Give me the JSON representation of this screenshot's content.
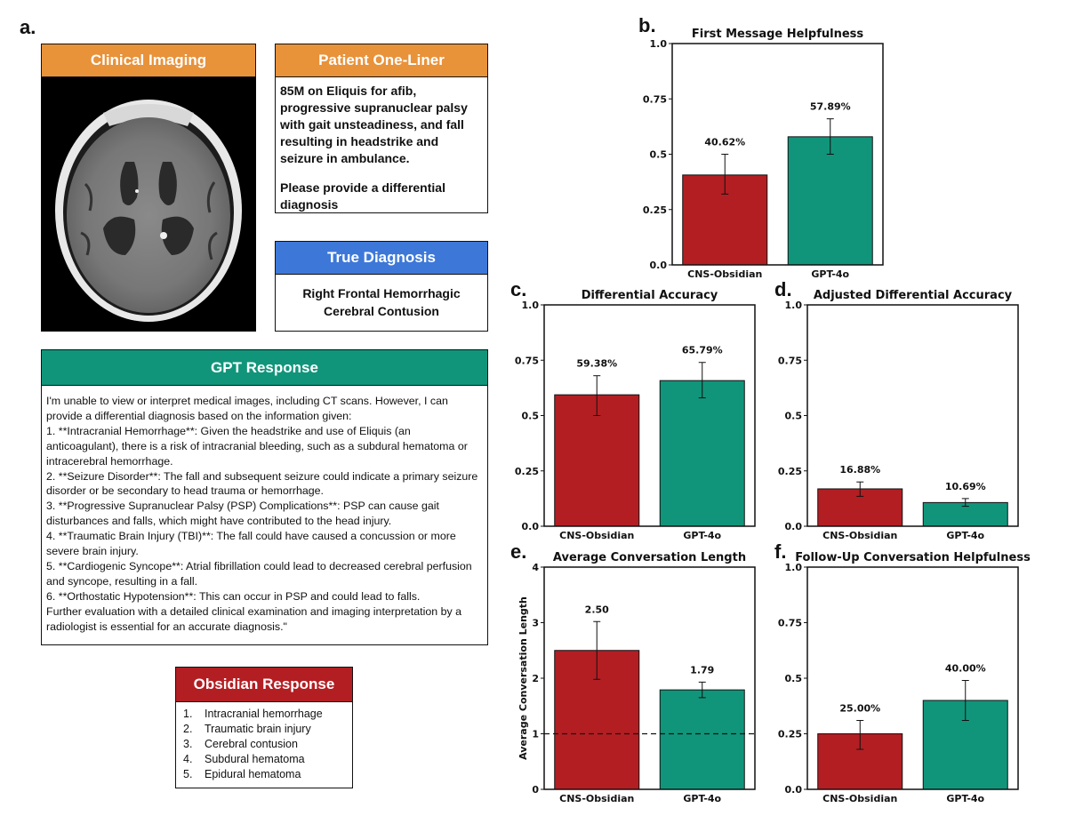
{
  "panels": {
    "a": "a.",
    "b": "b.",
    "c": "c.",
    "d": "d.",
    "e": "e.",
    "f": "f."
  },
  "clinical_imaging": {
    "title": "Clinical Imaging"
  },
  "patient_one_liner": {
    "title": "Patient One-Liner",
    "text": "85M on Eliquis for afib, progressive supranuclear palsy with gait unsteadiness, and fall resulting in headstrike and seizure in ambulance.",
    "request": "Please provide a differential diagnosis"
  },
  "true_diagnosis": {
    "title": "True Diagnosis",
    "text": "Right Frontal Hemorrhagic Cerebral Contusion"
  },
  "gpt_response": {
    "title": "GPT Response",
    "lines": [
      "I'm unable to view or interpret medical images, including CT scans. However, I can provide a differential diagnosis based on the information given:",
      "1. **Intracranial Hemorrhage**: Given the headstrike and use of Eliquis (an anticoagulant), there is a risk of intracranial bleeding, such as a subdural hematoma or intracerebral hemorrhage.",
      "2. **Seizure Disorder**: The fall and subsequent seizure could indicate a primary seizure disorder or be secondary to head trauma or hemorrhage.",
      "3. **Progressive Supranuclear Palsy (PSP) Complications**: PSP can cause gait disturbances and falls, which might have contributed to the head injury.",
      "4. **Traumatic Brain Injury (TBI)**: The fall could have caused a concussion or more severe brain injury.",
      "5. **Cardiogenic Syncope**: Atrial fibrillation could lead to decreased cerebral perfusion and syncope, resulting in a fall.",
      "6. **Orthostatic Hypotension**: This can occur in PSP and could lead to falls.",
      "Further evaluation with a detailed clinical examination and imaging interpretation by a radiologist is essential for an accurate diagnosis.\""
    ]
  },
  "obsidian_response": {
    "title": "Obsidian Response",
    "items": [
      {
        "num": "1.",
        "text": "Intracranial hemorrhage"
      },
      {
        "num": "2.",
        "text": "Traumatic brain injury"
      },
      {
        "num": "3.",
        "text": "Cerebral contusion"
      },
      {
        "num": "4.",
        "text": "Subdural hematoma"
      },
      {
        "num": "5.",
        "text": "Epidural hematoma"
      }
    ]
  },
  "colors": {
    "obsidian": "#b31e23",
    "gpt": "#11957a",
    "orange": "#e8923a",
    "blue": "#3d78d8"
  },
  "chart_data": [
    {
      "id": "b",
      "type": "bar",
      "title": "First Message Helpfulness",
      "categories": [
        "CNS-Obsidian",
        "GPT-4o"
      ],
      "values": [
        0.4062,
        0.5789
      ],
      "errors": [
        [
          0.32,
          0.5
        ],
        [
          0.5,
          0.66
        ]
      ],
      "labels": [
        "40.62%",
        "57.89%"
      ],
      "ylim": [
        0,
        1.0
      ],
      "yticks": [
        0.0,
        0.25,
        0.5,
        0.75,
        1.0
      ],
      "ytick_labels": [
        "0.0",
        "0.25",
        "0.5",
        "0.75",
        "1.0"
      ],
      "ylabel": ""
    },
    {
      "id": "c",
      "type": "bar",
      "title": "Differential Accuracy",
      "categories": [
        "CNS-Obsidian",
        "GPT-4o"
      ],
      "values": [
        0.5938,
        0.6579
      ],
      "errors": [
        [
          0.5,
          0.68
        ],
        [
          0.58,
          0.74
        ]
      ],
      "labels": [
        "59.38%",
        "65.79%"
      ],
      "ylim": [
        0,
        1.0
      ],
      "yticks": [
        0.0,
        0.25,
        0.5,
        0.75,
        1.0
      ],
      "ytick_labels": [
        "0.0",
        "0.25",
        "0.5",
        "0.75",
        "1.0"
      ],
      "ylabel": ""
    },
    {
      "id": "d",
      "type": "bar",
      "title": "Adjusted Differential Accuracy",
      "categories": [
        "CNS-Obsidian",
        "GPT-4o"
      ],
      "values": [
        0.1688,
        0.1069
      ],
      "errors": [
        [
          0.135,
          0.2
        ],
        [
          0.09,
          0.125
        ]
      ],
      "labels": [
        "16.88%",
        "10.69%"
      ],
      "ylim": [
        0,
        1.0
      ],
      "yticks": [
        0.0,
        0.25,
        0.5,
        0.75,
        1.0
      ],
      "ytick_labels": [
        "0.0",
        "0.25",
        "0.5",
        "0.75",
        "1.0"
      ],
      "ylabel": ""
    },
    {
      "id": "e",
      "type": "bar",
      "title": "Average Conversation Length",
      "categories": [
        "CNS-Obsidian",
        "GPT-4o"
      ],
      "values": [
        2.5,
        1.79
      ],
      "errors": [
        [
          1.98,
          3.02
        ],
        [
          1.65,
          1.93
        ]
      ],
      "labels": [
        "2.50",
        "1.79"
      ],
      "ylim": [
        0,
        4
      ],
      "yticks": [
        0,
        1,
        2,
        3,
        4
      ],
      "ytick_labels": [
        "0",
        "1",
        "2",
        "3",
        "4"
      ],
      "ylabel": "Average Conversation Length",
      "reference_line": 1
    },
    {
      "id": "f",
      "type": "bar",
      "title": "Follow-Up Conversation Helpfulness",
      "categories": [
        "CNS-Obsidian",
        "GPT-4o"
      ],
      "values": [
        0.25,
        0.4
      ],
      "errors": [
        [
          0.18,
          0.31
        ],
        [
          0.31,
          0.49
        ]
      ],
      "labels": [
        "25.00%",
        "40.00%"
      ],
      "ylim": [
        0,
        1.0
      ],
      "yticks": [
        0.0,
        0.25,
        0.5,
        0.75,
        1.0
      ],
      "ytick_labels": [
        "0.0",
        "0.25",
        "0.5",
        "0.75",
        "1.0"
      ],
      "ylabel": ""
    }
  ]
}
